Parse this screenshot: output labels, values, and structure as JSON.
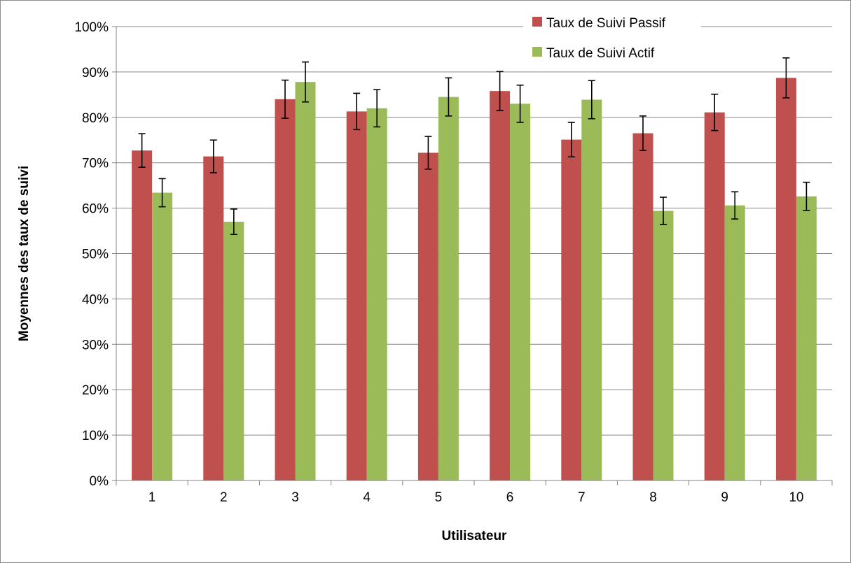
{
  "chart_data": {
    "type": "bar",
    "xlabel": "Utilisateur",
    "ylabel": "Moyennes des taux de suivi",
    "ylim": [
      0,
      100
    ],
    "ytick_step": 10,
    "ytick_format": "percent",
    "grid": "horizontal",
    "legend_position": "top-right",
    "categories": [
      "1",
      "2",
      "3",
      "4",
      "5",
      "6",
      "7",
      "8",
      "9",
      "10"
    ],
    "series": [
      {
        "name": "Taux de Suivi Passif",
        "color": "#c0504d",
        "values": [
          72.7,
          71.4,
          84.0,
          81.3,
          72.2,
          85.8,
          75.1,
          76.5,
          81.1,
          88.7
        ],
        "errors": [
          3.7,
          3.6,
          4.2,
          4.0,
          3.6,
          4.3,
          3.8,
          3.8,
          4.0,
          4.4
        ]
      },
      {
        "name": "Taux de Suivi Actif",
        "color": "#9bbb59",
        "values": [
          63.4,
          57.0,
          87.8,
          82.0,
          84.5,
          83.0,
          83.9,
          59.4,
          60.6,
          62.6
        ],
        "errors": [
          3.1,
          2.8,
          4.4,
          4.1,
          4.2,
          4.1,
          4.2,
          3.0,
          3.0,
          3.1
        ]
      }
    ]
  }
}
